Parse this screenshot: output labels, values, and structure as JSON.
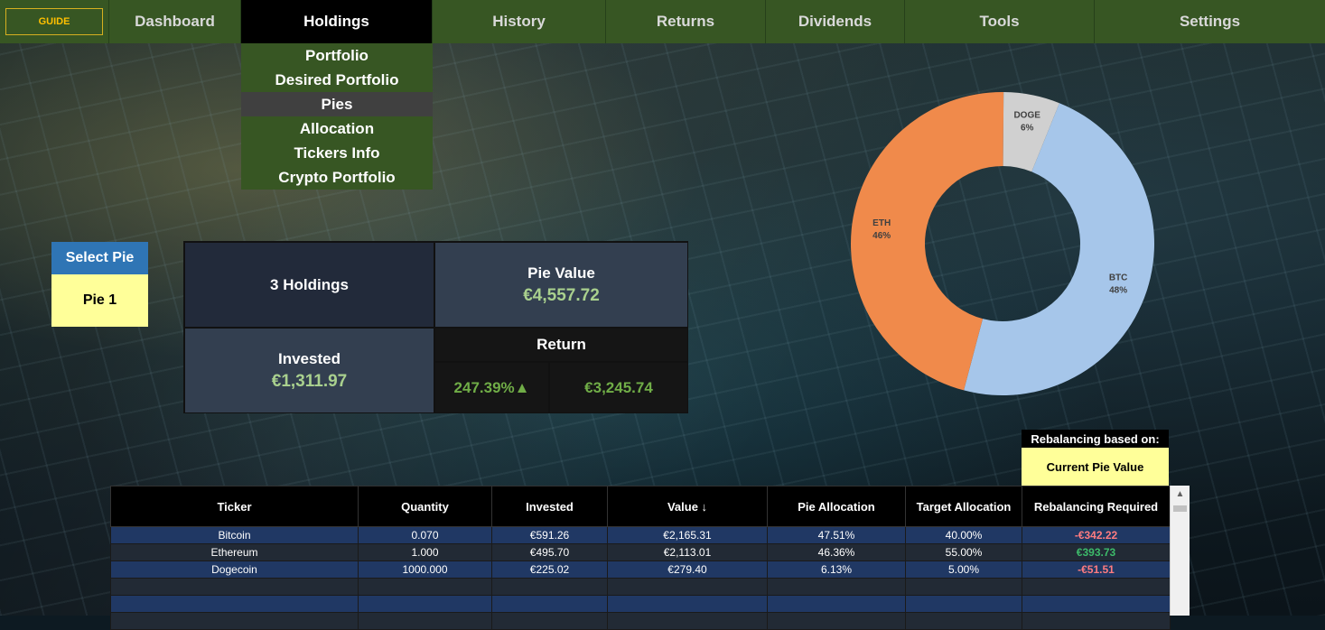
{
  "nav": {
    "guide": "GUIDE",
    "tabs": [
      "Dashboard",
      "Holdings",
      "History",
      "Returns",
      "Dividends",
      "Tools",
      "Settings"
    ],
    "active": "Holdings"
  },
  "dropdown": {
    "items": [
      "Portfolio",
      "Desired Portfolio",
      "Pies",
      "Allocation",
      "Tickers Info",
      "Crypto Portfolio"
    ],
    "selected": "Pies"
  },
  "select_pie": {
    "label": "Select Pie",
    "value": "Pie 1"
  },
  "summary": {
    "holdings": "3 Holdings",
    "pie_value_label": "Pie Value",
    "pie_value": "€4,557.72",
    "invested_label": "Invested",
    "invested": "€1,311.97",
    "return_label": "Return",
    "return_pct": "247.39%▲",
    "return_amt": "€3,245.74"
  },
  "chart_data": {
    "type": "pie",
    "categories": [
      "BTC",
      "ETH",
      "DOGE"
    ],
    "values": [
      48,
      46,
      6
    ],
    "labels": [
      "48%",
      "46%",
      "6%"
    ],
    "colors": [
      "#a6c6ea",
      "#f08a4b",
      "#d0d0d0"
    ]
  },
  "rebalancing": {
    "label": "Rebalancing based on:",
    "value": "Current Pie Value"
  },
  "table": {
    "headers": [
      "Ticker",
      "Quantity",
      "Invested",
      "Value ↓",
      "Pie Allocation",
      "Target Allocation",
      "Rebalancing Required"
    ],
    "rows": [
      [
        "Bitcoin",
        "0.070",
        "€591.26",
        "€2,165.31",
        "47.51%",
        "40.00%",
        "-€342.22"
      ],
      [
        "Ethereum",
        "1.000",
        "€495.70",
        "€2,113.01",
        "46.36%",
        "55.00%",
        "€393.73"
      ],
      [
        "Dogecoin",
        "1000.000",
        "€225.02",
        "€279.40",
        "6.13%",
        "5.00%",
        "-€51.51"
      ]
    ]
  },
  "colors": {
    "nav_bg": "#375623",
    "positive": "#3dbb6a",
    "negative": "#ff7c80",
    "highlight": "#ffff99"
  }
}
